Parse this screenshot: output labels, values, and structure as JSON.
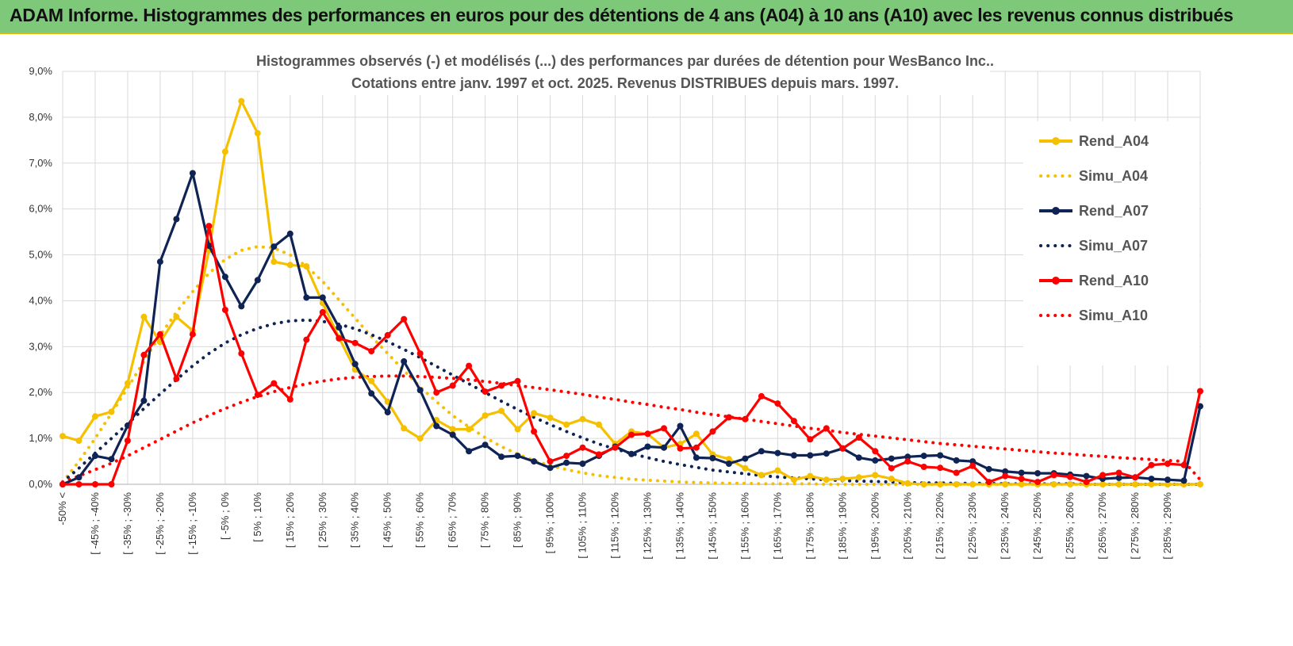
{
  "banner": {
    "title": "ADAM Informe. Histogrammes des performances en euros pour des détentions de 4 ans (A04) à 10 ans (A10) avec les revenus connus distribués"
  },
  "chart_data": {
    "type": "line",
    "title": "Histogrammes observés (-) et modélisés (...) des performances par durées de détention pour WesBanco Inc..",
    "subtitle": "Cotations entre janv. 1997 et oct. 2025.  Revenus DISTRIBUES depuis mars. 1997.",
    "xlabel": "",
    "ylabel": "",
    "ylim": [
      0,
      9
    ],
    "yticks": [
      "0,0%",
      "1,0%",
      "2,0%",
      "3,0%",
      "4,0%",
      "5,0%",
      "6,0%",
      "7,0%",
      "8,0%",
      "9,0%"
    ],
    "grid": true,
    "legend_position": "right",
    "x_tick_labels": [
      "-50% <",
      "[ -45% ; -40%",
      "[ -35% ; -30%",
      "[ -25% ; -20%",
      "[ -15% ; -10%",
      "[ -5% ; 0%",
      "[ 5% ; 10%",
      "[ 15% ; 20%",
      "[ 25% ; 30%",
      "[ 35% ; 40%",
      "[ 45% ; 50%",
      "[ 55% ; 60%",
      "[ 65% ; 70%",
      "[ 75% ; 80%",
      "[ 85% ; 90%",
      "[ 95% ; 100%",
      "[ 105% ; 110%",
      "[ 115% ; 120%",
      "[ 125% ; 130%",
      "[ 135% ; 140%",
      "[ 145% ; 150%",
      "[ 155% ; 160%",
      "[ 165% ; 170%",
      "[ 175% ; 180%",
      "[ 185% ; 190%",
      "[ 195% ; 200%",
      "[ 205% ; 210%",
      "[ 215% ; 220%",
      "[ 225% ; 230%",
      "[ 235% ; 240%",
      "[ 245% ; 250%",
      "[ 255% ; 260%",
      "[ 265% ; 270%",
      "[ 275% ; 280%",
      "[ 285% ; 290%"
    ],
    "n_categories": 71,
    "series": [
      {
        "name": "Rend_A04",
        "style": "solid",
        "color": "#f5c000",
        "values": [
          1.05,
          0.95,
          1.48,
          1.58,
          2.2,
          3.65,
          3.1,
          3.65,
          3.35,
          5.1,
          7.25,
          8.35,
          7.65,
          4.85,
          4.78,
          4.75,
          3.95,
          3.2,
          2.5,
          2.25,
          1.8,
          1.22,
          1.0,
          1.4,
          1.2,
          1.2,
          1.5,
          1.6,
          1.2,
          1.55,
          1.45,
          1.3,
          1.42,
          1.3,
          0.88,
          1.15,
          1.1,
          0.8,
          0.88,
          1.1,
          0.65,
          0.55,
          0.35,
          0.2,
          0.3,
          0.1,
          0.18,
          0.1,
          0.12,
          0.15,
          0.2,
          0.12,
          0.02,
          0.0,
          0.0,
          0.0,
          0.0,
          0.0,
          0.0,
          0.0,
          0.0,
          0.0,
          0.0,
          0.0,
          0.0,
          0.0,
          0.0,
          0.0,
          0.0,
          0.0,
          0.0
        ]
      },
      {
        "name": "Simu_A04",
        "style": "dotted",
        "color": "#f5c000",
        "values": [
          0.05,
          0.5,
          1.0,
          1.55,
          2.1,
          2.68,
          3.25,
          3.75,
          4.2,
          4.6,
          4.9,
          5.1,
          5.18,
          5.15,
          5.0,
          4.75,
          4.42,
          4.02,
          3.62,
          3.22,
          2.85,
          2.48,
          2.12,
          1.8,
          1.5,
          1.25,
          1.02,
          0.82,
          0.66,
          0.52,
          0.41,
          0.32,
          0.25,
          0.19,
          0.15,
          0.11,
          0.09,
          0.07,
          0.05,
          0.04,
          0.03,
          0.02,
          0.02,
          0.01,
          0.01,
          0.01,
          0.01,
          0.0,
          0.0,
          0.0,
          0.0,
          0.0,
          0.0,
          0.0,
          0.0,
          0.0,
          0.0,
          0.0,
          0.0,
          0.0,
          0.0,
          0.0,
          0.0,
          0.0,
          0.0,
          0.0,
          0.0,
          0.0,
          0.0,
          0.0,
          0.0
        ]
      },
      {
        "name": "Rend_A07",
        "style": "solid",
        "color": "#0f2454",
        "values": [
          0.0,
          0.15,
          0.62,
          0.55,
          1.28,
          1.82,
          4.85,
          5.78,
          6.78,
          5.2,
          4.52,
          3.88,
          4.45,
          5.18,
          5.46,
          4.07,
          4.07,
          3.42,
          2.62,
          1.98,
          1.57,
          2.68,
          2.05,
          1.27,
          1.08,
          0.72,
          0.86,
          0.6,
          0.62,
          0.5,
          0.36,
          0.47,
          0.45,
          0.62,
          0.82,
          0.66,
          0.82,
          0.8,
          1.27,
          0.58,
          0.57,
          0.45,
          0.56,
          0.72,
          0.68,
          0.63,
          0.63,
          0.67,
          0.78,
          0.58,
          0.52,
          0.56,
          0.6,
          0.62,
          0.63,
          0.52,
          0.5,
          0.33,
          0.28,
          0.25,
          0.24,
          0.24,
          0.21,
          0.18,
          0.12,
          0.14,
          0.15,
          0.12,
          0.1,
          0.08,
          1.7
        ]
      },
      {
        "name": "Simu_A07",
        "style": "dotted",
        "color": "#0f2454",
        "values": [
          0.05,
          0.35,
          0.68,
          1.0,
          1.32,
          1.65,
          1.97,
          2.28,
          2.58,
          2.85,
          3.08,
          3.26,
          3.4,
          3.5,
          3.56,
          3.58,
          3.55,
          3.49,
          3.39,
          3.26,
          3.11,
          2.94,
          2.76,
          2.57,
          2.38,
          2.19,
          2.0,
          1.81,
          1.63,
          1.46,
          1.3,
          1.15,
          1.01,
          0.88,
          0.77,
          0.67,
          0.58,
          0.5,
          0.43,
          0.37,
          0.31,
          0.27,
          0.23,
          0.19,
          0.16,
          0.14,
          0.12,
          0.1,
          0.08,
          0.07,
          0.06,
          0.05,
          0.04,
          0.03,
          0.03,
          0.02,
          0.02,
          0.02,
          0.01,
          0.01,
          0.01,
          0.01,
          0.01,
          0.0,
          0.0,
          0.0,
          0.0,
          0.0,
          0.0,
          0.0,
          0.0
        ]
      },
      {
        "name": "Rend_A10",
        "style": "solid",
        "color": "#ff0000",
        "values": [
          0.0,
          0.0,
          0.0,
          0.0,
          0.95,
          2.82,
          3.27,
          2.3,
          3.27,
          5.63,
          3.8,
          2.85,
          1.95,
          2.2,
          1.85,
          3.15,
          3.75,
          3.18,
          3.08,
          2.9,
          3.25,
          3.6,
          2.85,
          2.0,
          2.15,
          2.58,
          2.02,
          2.15,
          2.25,
          1.15,
          0.5,
          0.62,
          0.8,
          0.65,
          0.8,
          1.08,
          1.1,
          1.22,
          0.78,
          0.8,
          1.15,
          1.46,
          1.42,
          1.92,
          1.76,
          1.38,
          0.98,
          1.22,
          0.78,
          1.02,
          0.72,
          0.35,
          0.5,
          0.38,
          0.36,
          0.25,
          0.4,
          0.05,
          0.18,
          0.12,
          0.05,
          0.2,
          0.16,
          0.05,
          0.2,
          0.25,
          0.15,
          0.42,
          0.45,
          0.42,
          2.03
        ]
      },
      {
        "name": "Simu_A10",
        "style": "dotted",
        "color": "#ff0000",
        "values": [
          0.05,
          0.18,
          0.32,
          0.46,
          0.62,
          0.8,
          0.98,
          1.16,
          1.34,
          1.5,
          1.65,
          1.79,
          1.91,
          2.02,
          2.11,
          2.19,
          2.25,
          2.3,
          2.33,
          2.35,
          2.36,
          2.36,
          2.35,
          2.33,
          2.31,
          2.28,
          2.24,
          2.2,
          2.15,
          2.11,
          2.06,
          2.01,
          1.96,
          1.9,
          1.85,
          1.79,
          1.74,
          1.68,
          1.63,
          1.57,
          1.52,
          1.47,
          1.42,
          1.37,
          1.32,
          1.27,
          1.22,
          1.18,
          1.13,
          1.09,
          1.05,
          1.01,
          0.97,
          0.93,
          0.89,
          0.86,
          0.83,
          0.8,
          0.77,
          0.74,
          0.71,
          0.68,
          0.66,
          0.63,
          0.61,
          0.58,
          0.56,
          0.54,
          0.52,
          0.5,
          0.1
        ]
      }
    ]
  }
}
